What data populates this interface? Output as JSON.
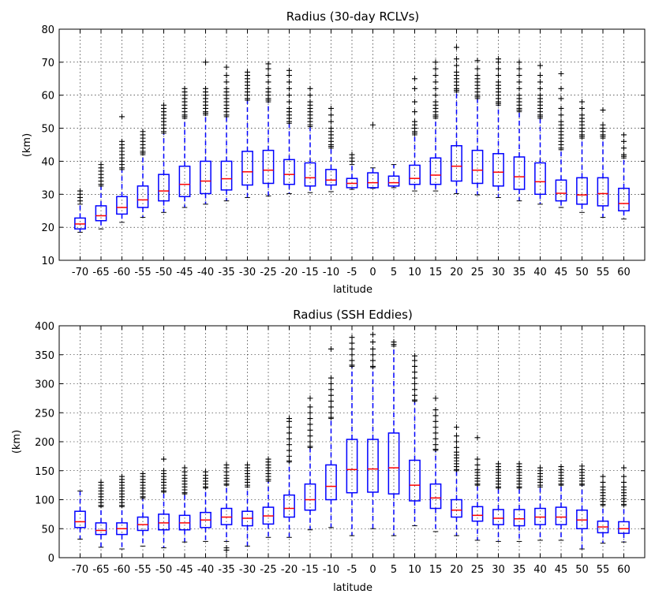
{
  "chart_data": [
    {
      "type": "boxplot",
      "title": "Radius (30-day RCLVs)",
      "xlabel": "latitude",
      "ylabel": "(km)",
      "ylim": [
        10,
        80
      ],
      "yticks": [
        10,
        20,
        30,
        40,
        50,
        60,
        70,
        80
      ],
      "grid": true,
      "colors": {
        "box": "#0000ff",
        "median": "#ff0000",
        "flier": "#000000"
      },
      "categories": [
        "-70",
        "-65",
        "-60",
        "-55",
        "-50",
        "-45",
        "-40",
        "-35",
        "-30",
        "-25",
        "-20",
        "-15",
        "-10",
        "-5",
        "0",
        "5",
        "10",
        "15",
        "20",
        "25",
        "30",
        "35",
        "40",
        "45",
        "50",
        "55",
        "60"
      ],
      "boxes": [
        {
          "whislo": 18.5,
          "q1": 19.5,
          "med": 21,
          "q3": 22.8,
          "whishi": 27,
          "fliers": [
            28,
            29,
            30,
            31
          ]
        },
        {
          "whislo": 19.5,
          "q1": 22,
          "med": 23.5,
          "q3": 26.5,
          "whishi": 32.5,
          "fliers": [
            33,
            34,
            35,
            36,
            37,
            38,
            39
          ]
        },
        {
          "whislo": 21.5,
          "q1": 24,
          "med": 26,
          "q3": 29.3,
          "whishi": 37.5,
          "fliers": [
            38,
            39,
            40,
            41,
            42,
            43,
            44,
            45,
            46,
            53.5
          ]
        },
        {
          "whislo": 23,
          "q1": 26,
          "med": 28.3,
          "q3": 32.5,
          "whishi": 42,
          "fliers": [
            42.5,
            43,
            44,
            45,
            46,
            47,
            48,
            49
          ]
        },
        {
          "whislo": 24.5,
          "q1": 28,
          "med": 31,
          "q3": 36,
          "whishi": 48.5,
          "fliers": [
            49,
            50,
            51,
            52,
            53,
            54,
            55,
            56,
            57
          ]
        },
        {
          "whislo": 26,
          "q1": 29.3,
          "med": 33,
          "q3": 38.5,
          "whishi": 53,
          "fliers": [
            53.5,
            54,
            55,
            56,
            57,
            58,
            59,
            60,
            61,
            62
          ]
        },
        {
          "whislo": 27,
          "q1": 30.2,
          "med": 34,
          "q3": 40,
          "whishi": 54,
          "fliers": [
            54.5,
            55,
            56,
            57,
            58,
            59,
            60,
            61,
            62,
            70
          ]
        },
        {
          "whislo": 28,
          "q1": 31.3,
          "med": 34.7,
          "q3": 40,
          "whishi": 53.5,
          "fliers": [
            54,
            55,
            56,
            57,
            58,
            59,
            60,
            61,
            62,
            64,
            66,
            68.5
          ]
        },
        {
          "whislo": 29,
          "q1": 32.8,
          "med": 36.8,
          "q3": 43,
          "whishi": 58.5,
          "fliers": [
            59,
            60,
            61,
            62,
            63,
            64,
            65,
            66,
            67
          ]
        },
        {
          "whislo": 29.5,
          "q1": 33.3,
          "med": 37.3,
          "q3": 43.3,
          "whishi": 58,
          "fliers": [
            58.5,
            59,
            60,
            61,
            62,
            64,
            66,
            68,
            69.5
          ]
        },
        {
          "whislo": 30.2,
          "q1": 33,
          "med": 36,
          "q3": 40.5,
          "whishi": 51.5,
          "fliers": [
            52,
            53,
            54,
            55,
            56,
            58,
            60,
            62,
            64,
            66,
            67.5
          ]
        },
        {
          "whislo": 30.5,
          "q1": 32.5,
          "med": 35,
          "q3": 39.5,
          "whishi": 50.5,
          "fliers": [
            51,
            52,
            53,
            54,
            55,
            56,
            57,
            58,
            60,
            62
          ]
        },
        {
          "whislo": 30.8,
          "q1": 32.8,
          "med": 34.3,
          "q3": 37.5,
          "whishi": 44,
          "fliers": [
            44.5,
            45,
            46,
            47,
            48,
            49,
            50,
            52,
            54,
            56
          ]
        },
        {
          "whislo": 31.5,
          "q1": 32,
          "med": 33.3,
          "q3": 34.8,
          "whishi": 39,
          "fliers": [
            40,
            41,
            42
          ]
        },
        {
          "whislo": 31.8,
          "q1": 32,
          "med": 33.5,
          "q3": 36.5,
          "whishi": 38,
          "fliers": [
            51
          ]
        },
        {
          "whislo": 32,
          "q1": 32.5,
          "med": 33.5,
          "q3": 35.5,
          "whishi": 39,
          "fliers": []
        },
        {
          "whislo": 31,
          "q1": 33,
          "med": 34.8,
          "q3": 38.8,
          "whishi": 48,
          "fliers": [
            48.5,
            49,
            50,
            51,
            52,
            55,
            58,
            62,
            65
          ]
        },
        {
          "whislo": 31,
          "q1": 33,
          "med": 35.8,
          "q3": 41,
          "whishi": 53,
          "fliers": [
            53.5,
            54,
            55,
            56,
            57,
            58,
            60,
            62,
            64,
            66,
            68,
            70
          ]
        },
        {
          "whislo": 30.2,
          "q1": 34,
          "med": 38.5,
          "q3": 44.7,
          "whishi": 61,
          "fliers": [
            61.5,
            62,
            63,
            64,
            65,
            66,
            67,
            69,
            71,
            74.5
          ]
        },
        {
          "whislo": 29.8,
          "q1": 33.3,
          "med": 37.3,
          "q3": 43.3,
          "whishi": 59,
          "fliers": [
            59.5,
            60,
            61,
            62,
            63,
            64,
            65,
            66,
            68,
            70.5
          ]
        },
        {
          "whislo": 29,
          "q1": 32.5,
          "med": 36.7,
          "q3": 42.3,
          "whishi": 57,
          "fliers": [
            57.5,
            58,
            59,
            60,
            61,
            62,
            63,
            64,
            66,
            68,
            70,
            71
          ]
        },
        {
          "whislo": 28,
          "q1": 31.5,
          "med": 35.3,
          "q3": 41.3,
          "whishi": 55,
          "fliers": [
            55.5,
            56,
            57,
            58,
            59,
            60,
            62,
            64,
            66,
            68,
            70
          ]
        },
        {
          "whislo": 27,
          "q1": 30,
          "med": 33.8,
          "q3": 39.5,
          "whishi": 53,
          "fliers": [
            53.5,
            54,
            55,
            56,
            57,
            58,
            59,
            60,
            62,
            64,
            66,
            69
          ]
        },
        {
          "whislo": 26,
          "q1": 28,
          "med": 30.3,
          "q3": 34.3,
          "whishi": 43.5,
          "fliers": [
            44,
            45,
            46,
            47,
            48,
            49,
            50,
            51,
            52,
            54,
            56,
            59,
            62,
            66.5
          ]
        },
        {
          "whislo": 24.5,
          "q1": 27,
          "med": 29.8,
          "q3": 35,
          "whishi": 47,
          "fliers": [
            47.5,
            48,
            49,
            50,
            51,
            52,
            53,
            54,
            56,
            58
          ]
        },
        {
          "whislo": 23,
          "q1": 26.5,
          "med": 30.2,
          "q3": 35,
          "whishi": 47,
          "fliers": [
            47.5,
            48,
            49,
            50,
            51,
            55.5
          ]
        },
        {
          "whislo": 22.5,
          "q1": 25,
          "med": 27.2,
          "q3": 31.8,
          "whishi": 41,
          "fliers": [
            41.5,
            42,
            44,
            46,
            48
          ]
        }
      ]
    },
    {
      "type": "boxplot",
      "title": "Radius (SSH Eddies)",
      "xlabel": "latitude",
      "ylabel": "(km)",
      "ylim": [
        0,
        400
      ],
      "yticks": [
        0,
        50,
        100,
        150,
        200,
        250,
        300,
        350,
        400
      ],
      "grid": true,
      "colors": {
        "box": "#0000ff",
        "median": "#ff0000",
        "flier": "#000000"
      },
      "categories": [
        "-70",
        "-65",
        "-60",
        "-55",
        "-50",
        "-45",
        "-40",
        "-35",
        "-30",
        "-25",
        "-20",
        "-15",
        "-10",
        "-5",
        "0",
        "5",
        "10",
        "15",
        "20",
        "25",
        "30",
        "35",
        "40",
        "45",
        "50",
        "55",
        "60"
      ],
      "boxes": [
        {
          "whislo": 32,
          "q1": 52,
          "med": 62,
          "q3": 80,
          "whishi": 115,
          "fliers": []
        },
        {
          "whislo": 18,
          "q1": 40,
          "med": 47,
          "q3": 60,
          "whishi": 88,
          "fliers": [
            90,
            95,
            100,
            105,
            110,
            115,
            120,
            125,
            130
          ]
        },
        {
          "whislo": 15,
          "q1": 40,
          "med": 50,
          "q3": 60,
          "whishi": 88,
          "fliers": [
            90,
            95,
            100,
            105,
            110,
            115,
            120,
            125,
            130,
            135,
            140
          ]
        },
        {
          "whislo": 20,
          "q1": 47,
          "med": 57,
          "q3": 70,
          "whishi": 103,
          "fliers": [
            105,
            110,
            115,
            120,
            125,
            130,
            135,
            140,
            145
          ]
        },
        {
          "whislo": 17,
          "q1": 48,
          "med": 60,
          "q3": 75,
          "whishi": 113,
          "fliers": [
            115,
            120,
            125,
            130,
            135,
            140,
            145,
            150,
            170
          ]
        },
        {
          "whislo": 27,
          "q1": 48,
          "med": 60,
          "q3": 73,
          "whishi": 110,
          "fliers": [
            112,
            117,
            122,
            127,
            132,
            137,
            142,
            148,
            155
          ]
        },
        {
          "whislo": 28,
          "q1": 52,
          "med": 65,
          "q3": 78,
          "whishi": 120,
          "fliers": [
            122,
            127,
            132,
            137,
            142,
            148
          ]
        },
        {
          "whislo": 28,
          "q1": 57,
          "med": 70,
          "q3": 85,
          "whishi": 125,
          "fliers": [
            13,
            17,
            127,
            132,
            137,
            142,
            148,
            155,
            160
          ]
        },
        {
          "whislo": 20,
          "q1": 55,
          "med": 68,
          "q3": 80,
          "whishi": 122,
          "fliers": [
            125,
            130,
            135,
            140,
            145,
            150,
            155,
            160
          ]
        },
        {
          "whislo": 35,
          "q1": 58,
          "med": 72,
          "q3": 87,
          "whishi": 132,
          "fliers": [
            135,
            140,
            145,
            150,
            155,
            160,
            165,
            170
          ]
        },
        {
          "whislo": 35,
          "q1": 70,
          "med": 85,
          "q3": 108,
          "whishi": 165,
          "fliers": [
            167,
            175,
            185,
            195,
            205,
            215,
            225,
            235,
            240
          ]
        },
        {
          "whislo": 48,
          "q1": 82,
          "med": 100,
          "q3": 127,
          "whishi": 190,
          "fliers": [
            192,
            200,
            210,
            220,
            230,
            240,
            250,
            260,
            275
          ]
        },
        {
          "whislo": 52,
          "q1": 100,
          "med": 123,
          "q3": 160,
          "whishi": 240,
          "fliers": [
            242,
            250,
            260,
            270,
            280,
            290,
            300,
            310,
            360
          ]
        },
        {
          "whislo": 38,
          "q1": 112,
          "med": 152,
          "q3": 204,
          "whishi": 330,
          "fliers": [
            332,
            340,
            350,
            360,
            370,
            380
          ]
        },
        {
          "whislo": 50,
          "q1": 113,
          "med": 153,
          "q3": 204,
          "whishi": 328,
          "fliers": [
            330,
            340,
            350,
            360,
            372,
            385
          ]
        },
        {
          "whislo": 38,
          "q1": 110,
          "med": 155,
          "q3": 215,
          "whishi": 365,
          "fliers": [
            368,
            372
          ]
        },
        {
          "whislo": 55,
          "q1": 98,
          "med": 125,
          "q3": 168,
          "whishi": 270,
          "fliers": [
            272,
            280,
            290,
            300,
            310,
            320,
            330,
            340,
            348
          ]
        },
        {
          "whislo": 45,
          "q1": 85,
          "med": 103,
          "q3": 127,
          "whishi": 185,
          "fliers": [
            187,
            195,
            205,
            215,
            225,
            235,
            245,
            255,
            275
          ]
        },
        {
          "whislo": 38,
          "q1": 70,
          "med": 82,
          "q3": 100,
          "whishi": 150,
          "fliers": [
            152,
            157,
            162,
            167,
            172,
            177,
            182,
            190,
            200,
            210,
            225
          ]
        },
        {
          "whislo": 30,
          "q1": 63,
          "med": 73,
          "q3": 88,
          "whishi": 125,
          "fliers": [
            127,
            132,
            137,
            142,
            147,
            152,
            160,
            170,
            207
          ]
        },
        {
          "whislo": 28,
          "q1": 57,
          "med": 68,
          "q3": 83,
          "whishi": 120,
          "fliers": [
            122,
            127,
            132,
            137,
            142,
            147,
            152,
            157,
            162
          ]
        },
        {
          "whislo": 28,
          "q1": 55,
          "med": 67,
          "q3": 83,
          "whishi": 120,
          "fliers": [
            122,
            127,
            132,
            137,
            142,
            147,
            152,
            157,
            162
          ]
        },
        {
          "whislo": 30,
          "q1": 57,
          "med": 70,
          "q3": 85,
          "whishi": 122,
          "fliers": [
            125,
            130,
            135,
            140,
            145,
            150,
            155
          ]
        },
        {
          "whislo": 30,
          "q1": 57,
          "med": 70,
          "q3": 87,
          "whishi": 125,
          "fliers": [
            127,
            132,
            137,
            142,
            147,
            152,
            157
          ]
        },
        {
          "whislo": 15,
          "q1": 50,
          "med": 65,
          "q3": 82,
          "whishi": 125,
          "fliers": [
            127,
            132,
            137,
            142,
            147,
            152,
            158
          ]
        },
        {
          "whislo": 25,
          "q1": 43,
          "med": 53,
          "q3": 63,
          "whishi": 90,
          "fliers": [
            92,
            97,
            102,
            107,
            112,
            117,
            122,
            130,
            140
          ]
        },
        {
          "whislo": 27,
          "q1": 42,
          "med": 50,
          "q3": 62,
          "whishi": 90,
          "fliers": [
            92,
            97,
            102,
            107,
            112,
            117,
            122,
            130,
            140,
            155
          ]
        }
      ]
    }
  ]
}
